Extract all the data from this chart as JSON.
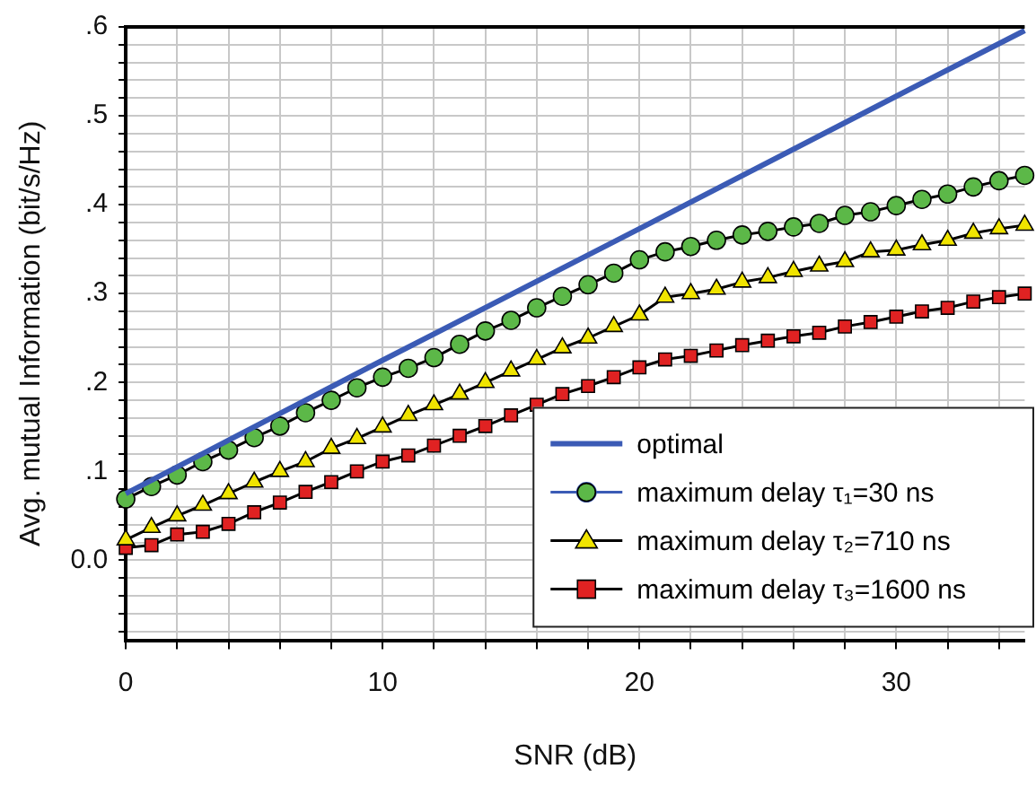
{
  "chart_data": {
    "type": "line",
    "xlabel": "SNR (dB)",
    "ylabel": "Avg. mutual Information (bit/s/Hz)",
    "xlim": [
      0,
      35
    ],
    "ylim": [
      -0.09,
      0.6
    ],
    "xticks": [
      0,
      {
        "value": 2,
        "label": null
      },
      {
        "value": 4,
        "label": null
      },
      {
        "value": 6,
        "label": null
      },
      {
        "value": 8,
        "label": null
      },
      10,
      {
        "value": 12,
        "label": null
      },
      {
        "value": 14,
        "label": null
      },
      {
        "value": 16,
        "label": null
      },
      {
        "value": 18,
        "label": null
      },
      20,
      {
        "value": 22,
        "label": null
      },
      {
        "value": 24,
        "label": null
      },
      {
        "value": 26,
        "label": null
      },
      {
        "value": 28,
        "label": null
      },
      30,
      {
        "value": 32,
        "label": null
      },
      {
        "value": 34,
        "label": null
      }
    ],
    "yticks": [
      {
        "value": -0.08,
        "label": null
      },
      {
        "value": -0.06,
        "label": null
      },
      {
        "value": -0.04,
        "label": null
      },
      {
        "value": -0.02,
        "label": null
      },
      {
        "value": 0,
        "label": "0.0"
      },
      {
        "value": 0.02,
        "label": null
      },
      {
        "value": 0.04,
        "label": null
      },
      {
        "value": 0.06,
        "label": null
      },
      {
        "value": 0.08,
        "label": null
      },
      {
        "value": 0.1,
        "label": ".1"
      },
      {
        "value": 0.12,
        "label": null
      },
      {
        "value": 0.14,
        "label": null
      },
      {
        "value": 0.16,
        "label": null
      },
      {
        "value": 0.18,
        "label": null
      },
      {
        "value": 0.2,
        "label": ".2"
      },
      {
        "value": 0.22,
        "label": null
      },
      {
        "value": 0.24,
        "label": null
      },
      {
        "value": 0.26,
        "label": null
      },
      {
        "value": 0.28,
        "label": null
      },
      {
        "value": 0.3,
        "label": ".3"
      },
      {
        "value": 0.32,
        "label": null
      },
      {
        "value": 0.34,
        "label": null
      },
      {
        "value": 0.36,
        "label": null
      },
      {
        "value": 0.38,
        "label": null
      },
      {
        "value": 0.4,
        "label": ".4"
      },
      {
        "value": 0.42,
        "label": null
      },
      {
        "value": 0.44,
        "label": null
      },
      {
        "value": 0.46,
        "label": null
      },
      {
        "value": 0.48,
        "label": null
      },
      {
        "value": 0.5,
        "label": ".5"
      },
      {
        "value": 0.52,
        "label": null
      },
      {
        "value": 0.54,
        "label": null
      },
      {
        "value": 0.56,
        "label": null
      },
      {
        "value": 0.58,
        "label": null
      },
      {
        "value": 0.6,
        "label": ".6"
      }
    ],
    "grid": true,
    "legend": "bottom right",
    "line_style": "solid",
    "series": [
      {
        "name": "optimal",
        "color": "#3b5bb5",
        "marker": "none",
        "x": [
          0,
          10,
          20,
          30,
          35
        ],
        "values": [
          0.075,
          0.225,
          0.373,
          0.522,
          0.596
        ]
      },
      {
        "name": "maximum delay τ₁=30 ns",
        "color": "#5cb848",
        "marker": "circle",
        "x": [
          0,
          1,
          2,
          3,
          4,
          5,
          6,
          7,
          8,
          9,
          10,
          11,
          12,
          13,
          14,
          15,
          16,
          17,
          18,
          19,
          20,
          21,
          22,
          23,
          24,
          25,
          26,
          27,
          28,
          29,
          30,
          31,
          32,
          33,
          34,
          35
        ],
        "values": [
          0.069,
          0.083,
          0.096,
          0.111,
          0.124,
          0.138,
          0.151,
          0.166,
          0.18,
          0.194,
          0.206,
          0.216,
          0.228,
          0.243,
          0.258,
          0.27,
          0.284,
          0.297,
          0.31,
          0.323,
          0.338,
          0.347,
          0.353,
          0.36,
          0.366,
          0.37,
          0.375,
          0.379,
          0.388,
          0.392,
          0.399,
          0.406,
          0.412,
          0.42,
          0.427,
          0.433
        ]
      },
      {
        "name": "maximum delay τ₂=710 ns",
        "color": "#f0e400",
        "marker": "triangle",
        "x": [
          0,
          1,
          2,
          3,
          4,
          5,
          6,
          7,
          8,
          9,
          10,
          11,
          12,
          13,
          14,
          15,
          16,
          17,
          18,
          19,
          20,
          21,
          22,
          23,
          24,
          25,
          26,
          27,
          28,
          29,
          30,
          31,
          32,
          33,
          34,
          35
        ],
        "values": [
          0.023,
          0.037,
          0.05,
          0.062,
          0.075,
          0.088,
          0.1,
          0.111,
          0.126,
          0.137,
          0.15,
          0.163,
          0.175,
          0.187,
          0.2,
          0.213,
          0.226,
          0.239,
          0.25,
          0.263,
          0.276,
          0.296,
          0.3,
          0.305,
          0.313,
          0.318,
          0.325,
          0.331,
          0.336,
          0.347,
          0.349,
          0.355,
          0.36,
          0.368,
          0.373,
          0.377
        ]
      },
      {
        "name": "maximum delay τ₃=1600 ns",
        "color": "#e02222",
        "marker": "square",
        "x": [
          0,
          1,
          2,
          3,
          4,
          5,
          6,
          7,
          8,
          9,
          10,
          11,
          12,
          13,
          14,
          15,
          16,
          17,
          18,
          19,
          20,
          21,
          22,
          23,
          24,
          25,
          26,
          27,
          28,
          29,
          30,
          31,
          32,
          33,
          34,
          35
        ],
        "values": [
          0.014,
          0.017,
          0.029,
          0.032,
          0.041,
          0.054,
          0.065,
          0.077,
          0.088,
          0.1,
          0.111,
          0.118,
          0.129,
          0.14,
          0.151,
          0.163,
          0.175,
          0.187,
          0.196,
          0.206,
          0.217,
          0.226,
          0.23,
          0.236,
          0.242,
          0.247,
          0.252,
          0.256,
          0.263,
          0.268,
          0.274,
          0.28,
          0.284,
          0.291,
          0.296,
          0.3
        ]
      }
    ]
  }
}
